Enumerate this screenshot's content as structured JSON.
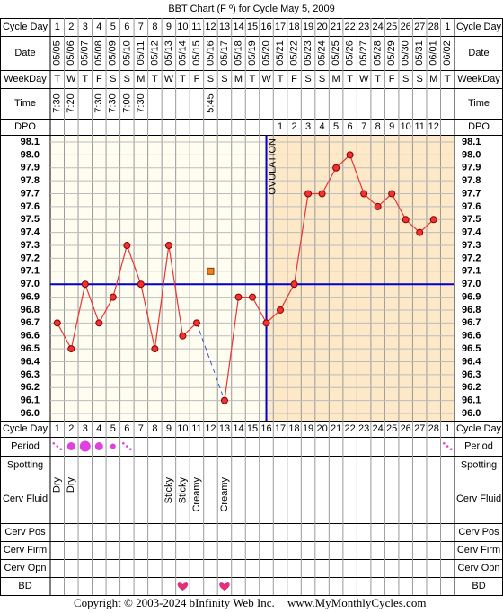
{
  "chart_data": {
    "type": "line",
    "title": "BBT Chart (F º) for Cycle May 5, 2009",
    "row_labels": {
      "cycle_day": "Cycle Day",
      "date": "Date",
      "weekday": "WeekDay",
      "time": "Time",
      "dpo": "DPO",
      "period": "Period",
      "spotting": "Spotting",
      "cerv_fluid": "Cerv Fluid",
      "cerv_pos": "Cerv Pos",
      "cerv_firm": "Cerv Firm",
      "cerv_opn": "Cerv Opn",
      "bd": "BD"
    },
    "categories": [
      1,
      2,
      3,
      4,
      5,
      6,
      7,
      8,
      9,
      10,
      11,
      12,
      13,
      14,
      15,
      16,
      17,
      18,
      19,
      20,
      21,
      22,
      23,
      24,
      25,
      26,
      27,
      28,
      1
    ],
    "dates": [
      "05/05",
      "05/06",
      "05/07",
      "05/08",
      "05/09",
      "05/10",
      "05/11",
      "05/12",
      "05/13",
      "05/14",
      "05/15",
      "05/16",
      "05/17",
      "05/18",
      "05/19",
      "05/20",
      "05/21",
      "05/22",
      "05/23",
      "05/24",
      "05/25",
      "05/26",
      "05/27",
      "05/28",
      "05/29",
      "05/30",
      "05/31",
      "06/01",
      "06/02"
    ],
    "weekdays": [
      "T",
      "W",
      "T",
      "F",
      "S",
      "S",
      "M",
      "T",
      "W",
      "T",
      "F",
      "S",
      "S",
      "M",
      "T",
      "W",
      "T",
      "F",
      "S",
      "S",
      "M",
      "T",
      "W",
      "T",
      "F",
      "S",
      "S",
      "M",
      "T"
    ],
    "times": [
      "7:30",
      "7:20",
      null,
      "7:30",
      "7:30",
      "7:00",
      "7:30",
      null,
      null,
      null,
      null,
      "5:45",
      null,
      null,
      null,
      null,
      null,
      null,
      null,
      null,
      null,
      null,
      null,
      null,
      null,
      null,
      null,
      null,
      null
    ],
    "dpo": [
      null,
      null,
      null,
      null,
      null,
      null,
      null,
      null,
      null,
      null,
      null,
      null,
      null,
      null,
      null,
      null,
      1,
      2,
      3,
      4,
      5,
      6,
      7,
      8,
      9,
      10,
      11,
      12,
      null
    ],
    "values": [
      96.7,
      96.5,
      97.0,
      96.7,
      96.9,
      97.3,
      97.0,
      96.5,
      97.3,
      96.6,
      96.7,
      null,
      96.1,
      96.9,
      96.9,
      96.7,
      96.8,
      97.0,
      97.7,
      97.7,
      97.9,
      98.0,
      97.7,
      97.6,
      97.7,
      97.5,
      97.4,
      97.5,
      null
    ],
    "discarded_values": [
      null,
      null,
      null,
      null,
      null,
      null,
      null,
      null,
      null,
      null,
      null,
      97.1,
      null,
      null,
      null,
      null,
      null,
      null,
      null,
      null,
      null,
      null,
      null,
      null,
      null,
      null,
      null,
      null,
      null
    ],
    "color": "#ee3333",
    "discarded_color": "#f08020",
    "ylim": [
      96.0,
      98.1
    ],
    "yticks": [
      98.1,
      {
        "value": 98.0,
        "label": "98.0"
      },
      97.9,
      97.8,
      97.7,
      97.6,
      97.5,
      97.4,
      97.3,
      97.2,
      97.1,
      {
        "value": 97.0,
        "label": "97.0"
      },
      96.9,
      96.8,
      96.7,
      96.6,
      96.5,
      96.4,
      96.3,
      96.2,
      96.1,
      {
        "value": 96.0,
        "label": "96.0"
      }
    ],
    "grid": true,
    "coverline": 97.0,
    "coverline_color": "#0000cc",
    "ovulation_day": 16,
    "ovulation_label": "OVULATION",
    "period": [
      1,
      3,
      4,
      3,
      2,
      1,
      null,
      null,
      null,
      null,
      null,
      null,
      null,
      null,
      null,
      null,
      null,
      null,
      null,
      null,
      null,
      null,
      null,
      null,
      null,
      null,
      null,
      null,
      1
    ],
    "period_color": "#e040e0",
    "cerv_fluid": [
      "Dry",
      "Dry",
      null,
      null,
      null,
      null,
      null,
      null,
      "Sticky",
      "Sticky",
      "Creamy",
      null,
      "Creamy",
      null,
      null,
      null,
      null,
      null,
      null,
      null,
      null,
      null,
      null,
      null,
      null,
      null,
      null,
      null,
      null
    ],
    "bd_days": [
      10,
      13
    ],
    "bd_color": "#e0307a",
    "copyright": "Copyright © 2003-2024 bInfinity Web Inc.",
    "website": "www.MyMonthlyCycles.com"
  }
}
